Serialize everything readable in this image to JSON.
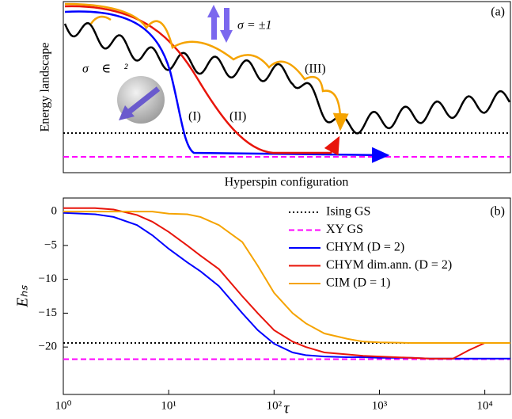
{
  "schematic": {
    "panel_label": "(a)",
    "y_label": "Energy landscape",
    "x_label": "Hyperspin configuration",
    "ising_label": "σ = ±1",
    "xy_label": "σ⃗ ∈ ℝ²",
    "path_labels": [
      "(I)",
      "(II)",
      "(III)"
    ]
  },
  "chart_data": {
    "type": "line",
    "panel_label": "(b)",
    "x_label": "τ",
    "y_label": "Eₕₛ",
    "x_scale": "log",
    "xlim": [
      1,
      17500
    ],
    "ylim": [
      -27,
      2
    ],
    "xticks": [
      {
        "value": 1,
        "label": "10⁰"
      },
      {
        "value": 10,
        "label": "10¹"
      },
      {
        "value": 100,
        "label": "10²"
      },
      {
        "value": 1000,
        "label": "10³"
      },
      {
        "value": 10000,
        "label": "10⁴"
      }
    ],
    "yticks": [
      0,
      {
        "value": -5,
        "label": "−5"
      },
      {
        "value": -10,
        "label": "−10"
      },
      {
        "value": -15,
        "label": "−15"
      },
      {
        "value": -20,
        "label": "−20"
      }
    ],
    "legend": "upper right",
    "reference_lines": [
      {
        "name": "Ising GS",
        "color": "#000000",
        "dash": "dotted",
        "value": -19.4
      },
      {
        "name": "XY GS",
        "color": "#ff00ff",
        "dash": "dashed",
        "value": -21.8
      }
    ],
    "x": [
      1,
      2,
      3,
      5,
      7,
      10,
      15,
      20,
      30,
      50,
      70,
      100,
      150,
      200,
      300,
      500,
      700,
      1000,
      2000,
      3000,
      5000,
      7000,
      10000,
      17500
    ],
    "series": [
      {
        "name": "CHYM (D = 2)",
        "color": "#0000ff",
        "values": [
          -0.2,
          -0.4,
          -0.8,
          -2,
          -3.5,
          -5.5,
          -7.5,
          -8.8,
          -11,
          -15,
          -17.5,
          -19.5,
          -20.8,
          -21.2,
          -21.4,
          -21.5,
          -21.5,
          -21.6,
          -21.6,
          -21.7,
          -21.7,
          -21.7,
          -21.7,
          -21.7
        ]
      },
      {
        "name": "CHYM dim.ann. (D = 2)",
        "color": "#e8150b",
        "values": [
          0.5,
          0.5,
          0.3,
          -0.5,
          -1.5,
          -3,
          -5,
          -6.5,
          -8.5,
          -12.5,
          -15,
          -17.5,
          -19.2,
          -20,
          -20.8,
          -21.1,
          -21.3,
          -21.4,
          -21.6,
          -21.7,
          -21.7,
          -20.5,
          -19.4,
          -19.4
        ]
      },
      {
        "name": "CIM (D = 1)",
        "color": "#f5a300",
        "values": [
          0,
          0,
          0,
          0,
          0,
          -0.3,
          -0.4,
          -0.8,
          -2,
          -4.5,
          -8,
          -12,
          -15,
          -16.5,
          -18,
          -18.8,
          -19.2,
          -19.3,
          -19.4,
          -19.4,
          -19.4,
          -19.4,
          -19.4,
          -19.4
        ]
      }
    ]
  }
}
